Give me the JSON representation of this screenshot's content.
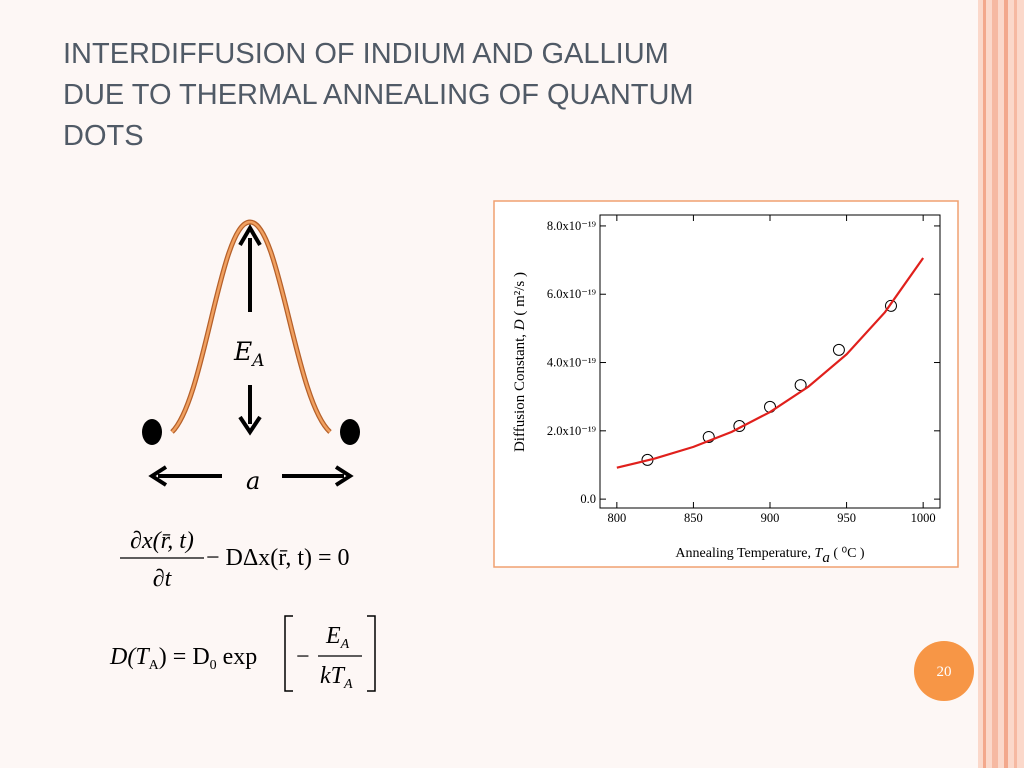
{
  "slide": {
    "title": [
      "INTERDIFFUSION OF INDIUM AND GALLIUM",
      "DUE TO THERMAL ANNEALING OF QUANTUM",
      "DOTS"
    ],
    "page_number": "20",
    "diagram": {
      "energy_label": {
        "main": "E",
        "sub": "A"
      },
      "distance_label": "a"
    },
    "equation_1": {
      "numerator": "∂x(r̄, t)",
      "denominator": "∂t",
      "rest": "− DΔx(r̄, t) = 0"
    },
    "equation_2": {
      "lhs": [
        "D(T",
        "A",
        ") = D",
        "0",
        " exp"
      ],
      "sign": "−",
      "numerator": [
        "E",
        "A"
      ],
      "denominator": [
        "kT",
        "A"
      ]
    }
  },
  "chart_data": {
    "type": "scatter",
    "x_label": {
      "text": "Annealing Temperature, ",
      "symbol": "T",
      "symbol_sub": "a",
      "unit": " ( ⁰C )"
    },
    "y_label": {
      "text": "Diffusion Constant, ",
      "symbol": "D",
      "unit": " ( m²/s )"
    },
    "xlim": [
      789,
      1011
    ],
    "xticks": [
      800,
      850,
      900,
      950,
      1000
    ],
    "ylim": [
      -2.6e-20,
      8.32e-19
    ],
    "yticks": [
      {
        "value": 0,
        "label": "0.0"
      },
      {
        "value": 2e-19,
        "label": "2.0x10⁻¹⁹"
      },
      {
        "value": 4e-19,
        "label": "4.0x10⁻¹⁹"
      },
      {
        "value": 6e-19,
        "label": "6.0x10⁻¹⁹"
      },
      {
        "value": 8e-19,
        "label": "8.0x10⁻¹⁹"
      }
    ],
    "series": [
      {
        "type": "scatter",
        "color": "#000000",
        "x": [
          820,
          860,
          880,
          900,
          920,
          945,
          979
        ],
        "values": [
          1.15e-19,
          1.82e-19,
          2.14e-19,
          2.7e-19,
          3.34e-19,
          4.37e-19,
          5.66e-19
        ]
      },
      {
        "type": "line",
        "color": "#e0201c",
        "x": [
          800,
          825,
          850,
          875,
          900,
          925,
          950,
          975,
          1000
        ],
        "values": [
          9.2e-20,
          1.19e-19,
          1.53e-19,
          1.97e-19,
          2.55e-19,
          3.29e-19,
          4.24e-19,
          5.47e-19,
          7.06e-19
        ]
      }
    ]
  }
}
